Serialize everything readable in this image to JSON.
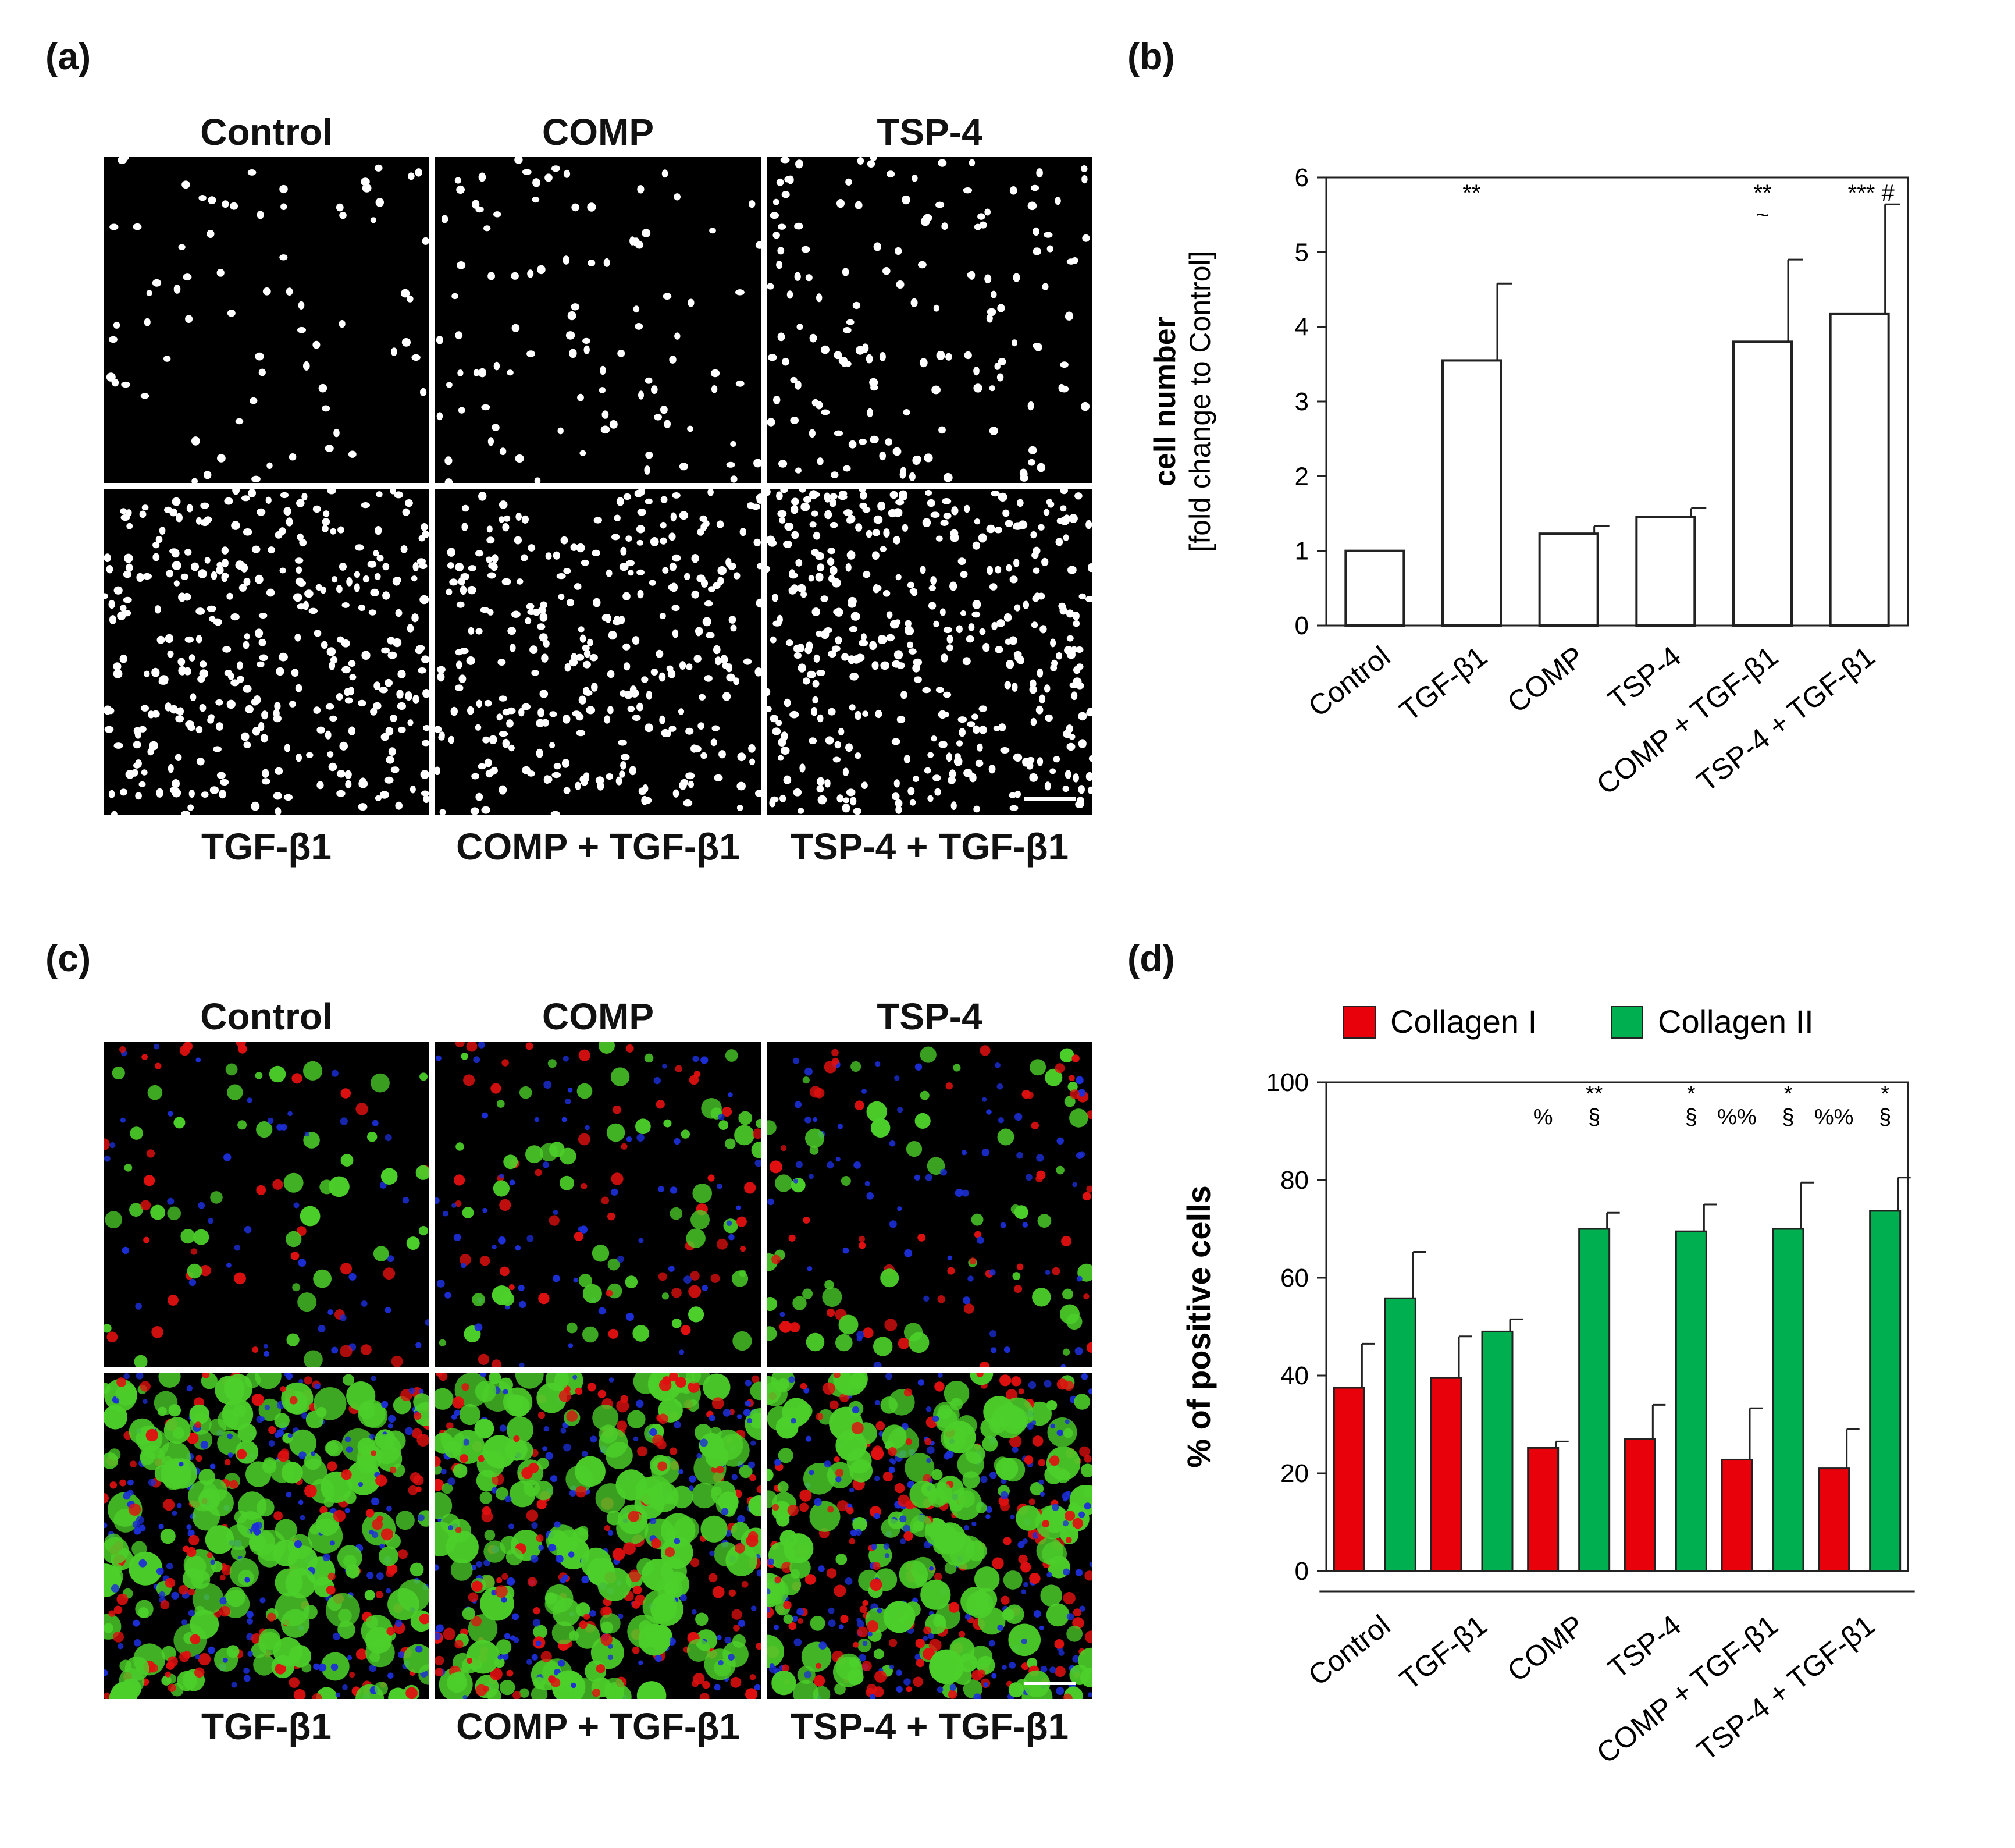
{
  "panels": {
    "a": {
      "letter": "(a)",
      "top_labels": [
        "Control",
        "COMP",
        "TSP-4"
      ],
      "bottom_labels": [
        "TGF-β1",
        "COMP + TGF-β1",
        "TSP-4 + TGF-β1"
      ],
      "image_description_colors": {
        "background": "#000000",
        "nuclei": "#ffffff"
      }
    },
    "b": {
      "letter": "(b)"
    },
    "c": {
      "letter": "(c)",
      "top_labels": [
        "Control",
        "COMP",
        "TSP-4"
      ],
      "bottom_labels": [
        "TGF-β1",
        "COMP + TGF-β1",
        "TSP-4 + TGF-β1"
      ],
      "image_description_colors": {
        "background": "#000000",
        "collagen_i": "#e01010",
        "collagen_ii": "#4ccf2a",
        "nuclei": "#1c2fd8"
      }
    },
    "d": {
      "letter": "(d)"
    }
  },
  "chart_data": [
    {
      "id": "b",
      "type": "bar",
      "categories": [
        "Control",
        "TGF-β1",
        "COMP",
        "TSP-4",
        "COMP + TGF-β1",
        "TSP-4 + TGF-β1"
      ],
      "values": [
        1.0,
        3.55,
        1.23,
        1.45,
        3.8,
        4.17
      ],
      "errors": [
        0.0,
        1.03,
        0.1,
        0.12,
        1.1,
        1.47
      ],
      "ylabel_line1": "cell number",
      "ylabel_line2": "[fold change to Control]",
      "ylim": [
        0,
        6
      ],
      "yticks": [
        0,
        1,
        2,
        3,
        4,
        5,
        6
      ],
      "annotations": [
        {
          "category": 1,
          "lines": [
            "**"
          ]
        },
        {
          "category": 4,
          "lines": [
            "**",
            "~"
          ]
        },
        {
          "category": 5,
          "lines": [
            "***  #"
          ]
        }
      ],
      "bar_color": "#ffffff",
      "grid": false
    },
    {
      "id": "d",
      "type": "bar",
      "categories": [
        "Control",
        "TGF-β1",
        "COMP",
        "TSP-4",
        "COMP + TGF-β1",
        "TSP-4 + TGF-β1"
      ],
      "series": [
        {
          "name": "Collagen I",
          "color": "#e8000b",
          "values": [
            37.5,
            39.5,
            25.2,
            27.0,
            22.8,
            21.0
          ],
          "errors": [
            9.0,
            8.5,
            1.3,
            7.0,
            10.5,
            8.0
          ]
        },
        {
          "name": "Collagen II",
          "color": "#00b050",
          "values": [
            55.8,
            49.0,
            70.0,
            69.5,
            70.0,
            73.7
          ],
          "errors": [
            9.5,
            2.5,
            3.3,
            5.5,
            9.5,
            6.8
          ]
        }
      ],
      "ylabel": "% of positive cells",
      "ylim": [
        0,
        100
      ],
      "yticks": [
        0,
        20,
        40,
        60,
        80,
        100
      ],
      "legend_position": "top",
      "annotations": [
        {
          "category": 2,
          "series": 0,
          "lines": [
            "",
            "%"
          ]
        },
        {
          "category": 2,
          "series": 1,
          "lines": [
            "**",
            "§"
          ]
        },
        {
          "category": 3,
          "series": 1,
          "lines": [
            "*",
            "§"
          ]
        },
        {
          "category": 4,
          "series": 0,
          "lines": [
            "",
            "%%"
          ]
        },
        {
          "category": 4,
          "series": 1,
          "lines": [
            "*",
            "§"
          ]
        },
        {
          "category": 5,
          "series": 0,
          "lines": [
            "",
            "%%"
          ]
        },
        {
          "category": 5,
          "series": 1,
          "lines": [
            "*",
            "§"
          ]
        }
      ],
      "grid": false
    }
  ]
}
